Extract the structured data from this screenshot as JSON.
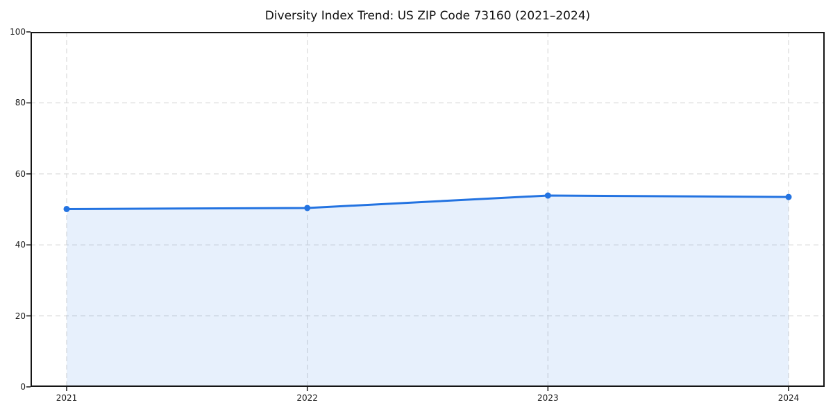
{
  "chart_data": {
    "type": "area",
    "title": "Diversity Index Trend: US ZIP Code 73160 (2021–2024)",
    "categories": [
      "2021",
      "2022",
      "2023",
      "2024"
    ],
    "series": [
      {
        "name": "Diversity Index",
        "values": [
          50.1,
          50.4,
          53.9,
          53.5
        ]
      }
    ],
    "xlabel": "",
    "ylabel": "",
    "ylim": [
      0,
      100
    ],
    "yticks": [
      0,
      20,
      40,
      60,
      80,
      100
    ],
    "grid": true,
    "grid_style": "dashed",
    "legend_position": "none",
    "line_color": "#2373e1",
    "marker_color": "#2373e1",
    "fill_color": "rgba(35, 115, 225, 0.11)",
    "grid_color": "#d9d9d9",
    "spine_color": "#151515",
    "tick_color": "#151515",
    "background_color": "#ffffff"
  }
}
